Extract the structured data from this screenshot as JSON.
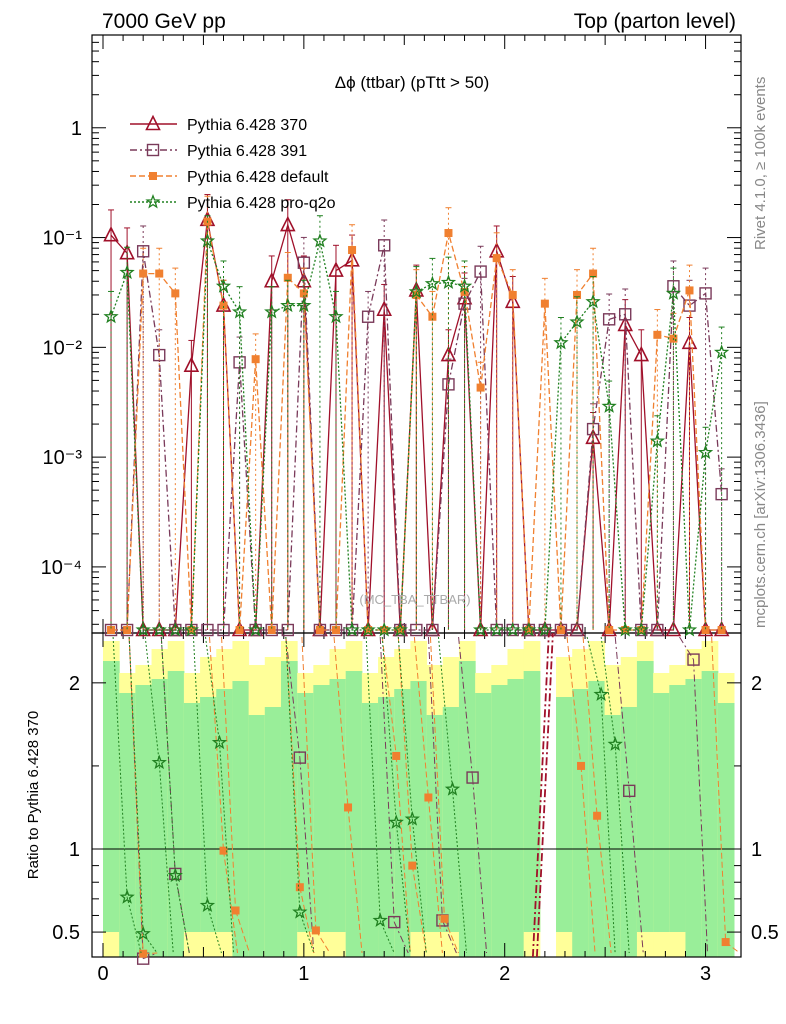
{
  "header": {
    "left": "7000 GeV pp",
    "right": "Top (parton level)"
  },
  "side": {
    "rivet": "Rivet 4.1.0, ≥ 100k events",
    "mcplots": "mcplots.cern.ch [arXiv:1306.3436]"
  },
  "chart_data": {
    "type": "line",
    "title": "Δϕ (ttbar) (pTtt > 50)",
    "watermark": "(MC_TBA_TTBAR)",
    "xlabel": "",
    "ylabel": "",
    "ratio_ylabel": "Ratio to Pythia 6.428 370",
    "xlim": [
      0,
      3.14159
    ],
    "ylim": [
      2.5e-05,
      7
    ],
    "ratio_ylim": [
      0.35,
      2.3
    ],
    "x_ticks": [
      "0",
      "1",
      "2",
      "3"
    ],
    "y_ticks": [
      "1",
      "10⁻¹",
      "10⁻²",
      "10⁻³",
      "10⁻⁴"
    ],
    "ratio_ticks": [
      "0.5",
      "1",
      "2"
    ],
    "legend_position": "top-left",
    "series": [
      {
        "name": "Pythia 6.428 370",
        "color": "#a0102a",
        "marker": "triangle",
        "dash": "",
        "x": [
          0.04,
          0.12,
          0.2,
          0.28,
          0.36,
          0.44,
          0.52,
          0.6,
          0.68,
          0.76,
          0.84,
          0.92,
          1.0,
          1.08,
          1.16,
          1.24,
          1.32,
          1.4,
          1.48,
          1.56,
          1.64,
          1.72,
          1.8,
          1.88,
          1.96,
          2.04,
          2.12,
          2.2,
          2.28,
          2.36,
          2.44,
          2.52,
          2.6,
          2.68,
          2.76,
          2.84,
          2.92,
          3.0,
          3.08
        ],
        "values": [
          0.105,
          0.072,
          0,
          0,
          0,
          0.0068,
          0.145,
          0.024,
          0,
          0,
          0.04,
          0.13,
          0.04,
          0,
          0.05,
          0.062,
          0,
          0.022,
          0,
          0.033,
          0,
          0.0085,
          0.028,
          0,
          0.075,
          0.026,
          0,
          0,
          0,
          0,
          0.0015,
          0,
          0.016,
          0.0085,
          0,
          0,
          0.011,
          0,
          0
        ]
      },
      {
        "name": "Pythia 6.428 391",
        "color": "#7a3a5a",
        "marker": "square",
        "dash": "7,3,2,3",
        "x": [
          0.04,
          0.12,
          0.2,
          0.28,
          0.36,
          0.44,
          0.52,
          0.6,
          0.68,
          0.76,
          0.84,
          0.92,
          1.0,
          1.08,
          1.16,
          1.24,
          1.32,
          1.4,
          1.48,
          1.56,
          1.64,
          1.72,
          1.8,
          1.88,
          1.96,
          2.04,
          2.12,
          2.2,
          2.28,
          2.36,
          2.44,
          2.52,
          2.6,
          2.68,
          2.76,
          2.84,
          2.92,
          3.0,
          3.08
        ],
        "values": [
          0,
          0,
          0.075,
          0.0085,
          0,
          0,
          0,
          0,
          0.0073,
          0,
          0,
          0,
          0.059,
          0,
          0,
          0,
          0.019,
          0.085,
          0,
          0,
          0,
          0.0046,
          0.025,
          0.049,
          0,
          0,
          0,
          0,
          0,
          0,
          0.0018,
          0.018,
          0.02,
          0,
          0,
          0.036,
          0.024,
          0.031,
          0.00046
        ]
      },
      {
        "name": "Pythia 6.428 default",
        "color": "#f08030",
        "marker": "filled-square",
        "dash": "6,3",
        "x": [
          0.04,
          0.12,
          0.2,
          0.28,
          0.36,
          0.44,
          0.52,
          0.6,
          0.68,
          0.76,
          0.84,
          0.92,
          1.0,
          1.08,
          1.16,
          1.24,
          1.32,
          1.4,
          1.48,
          1.56,
          1.64,
          1.72,
          1.8,
          1.88,
          1.96,
          2.04,
          2.12,
          2.2,
          2.28,
          2.36,
          2.44,
          2.52,
          2.6,
          2.68,
          2.76,
          2.84,
          2.92,
          3.0,
          3.08
        ],
        "values": [
          0,
          0,
          0.047,
          0.047,
          0.031,
          0,
          0.14,
          0.024,
          0,
          0.0078,
          0,
          0.043,
          0.031,
          0,
          0,
          0.077,
          0,
          0,
          0,
          0.03,
          0.019,
          0.11,
          0.032,
          0.0043,
          0.065,
          0.03,
          0,
          0.025,
          0,
          0.03,
          0.047,
          0,
          0,
          0,
          0.013,
          0.012,
          0.033,
          0,
          0
        ]
      },
      {
        "name": "Pythia 6.428 pro-q2o",
        "color": "#208020",
        "marker": "star",
        "dash": "2,2",
        "x": [
          0.04,
          0.12,
          0.2,
          0.28,
          0.36,
          0.44,
          0.52,
          0.6,
          0.68,
          0.76,
          0.84,
          0.92,
          1.0,
          1.08,
          1.16,
          1.24,
          1.32,
          1.4,
          1.48,
          1.56,
          1.64,
          1.72,
          1.8,
          1.88,
          1.96,
          2.04,
          2.12,
          2.2,
          2.28,
          2.36,
          2.44,
          2.52,
          2.6,
          2.68,
          2.76,
          2.84,
          2.92,
          3.0,
          3.08
        ],
        "values": [
          0.019,
          0.048,
          0,
          0,
          0,
          0,
          0.093,
          0.036,
          0.021,
          0,
          0.021,
          0.024,
          0.024,
          0.093,
          0.019,
          0,
          0,
          0,
          0,
          0.032,
          0.038,
          0.039,
          0.036,
          0,
          0,
          0,
          0,
          0,
          0.011,
          0.017,
          0.026,
          0.0029,
          0,
          0,
          0.0014,
          0.031,
          0,
          0.0011,
          0.009
        ]
      }
    ],
    "ratio_series": [
      {
        "name": "Pythia 6.428 391",
        "x": [
          0.2,
          0.36,
          0.98,
          1.45,
          1.69,
          1.84,
          2.62,
          2.94
        ],
        "values": [
          0.34,
          0.85,
          1.55,
          0.56,
          0.57,
          1.43,
          1.35,
          2.14
        ]
      },
      {
        "name": "Pythia 6.428 default",
        "x": [
          0.2,
          0.6,
          0.66,
          0.98,
          1.06,
          1.22,
          1.46,
          1.54,
          1.62,
          1.7,
          2.38,
          2.46,
          3.1
        ],
        "values": [
          0.37,
          0.99,
          0.63,
          0.77,
          0.51,
          1.25,
          1.56,
          0.9,
          1.31,
          0.58,
          1.5,
          1.2,
          0.44
        ]
      },
      {
        "name": "Pythia 6.428 pro-q2o",
        "x": [
          0.12,
          0.2,
          0.28,
          0.36,
          0.52,
          0.58,
          0.98,
          1.38,
          1.46,
          1.54,
          1.74,
          2.48,
          2.55
        ],
        "values": [
          0.71,
          0.49,
          1.52,
          0.84,
          0.66,
          1.64,
          0.62,
          0.57,
          1.16,
          1.18,
          1.36,
          1.93,
          1.63
        ]
      }
    ]
  }
}
